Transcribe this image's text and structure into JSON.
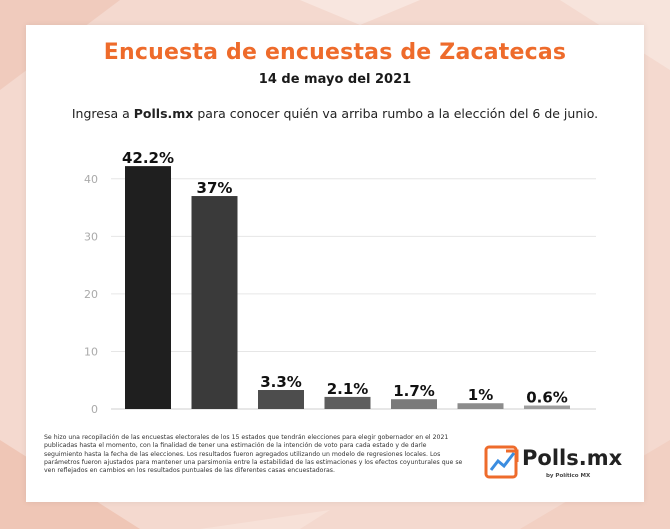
{
  "header": {
    "title": "Encuesta de encuestas de Zacatecas",
    "date": "14 de mayo del 2021",
    "intro_prefix": "Ingresa a ",
    "intro_brand": "Polls.mx",
    "intro_suffix": " para conocer quién va arriba rumbo a la elección del 6 de junio."
  },
  "chart_data": {
    "type": "bar",
    "title": "",
    "xlabel": "",
    "ylabel": "",
    "ylim": [
      0,
      45
    ],
    "yticks": [
      0,
      10,
      20,
      30,
      40
    ],
    "grid": true,
    "values": [
      42.2,
      37,
      3.3,
      2.1,
      1.7,
      1,
      0.6
    ],
    "labels": [
      "42.2%",
      "37%",
      "3.3%",
      "2.1%",
      "1.7%",
      "1%",
      "0.6%"
    ],
    "colors": [
      "#1f1f1f",
      "#3a3a3a",
      "#4d4d4d",
      "#5e5e5e",
      "#7a7a7a",
      "#8c8c8c",
      "#9e9e9e"
    ]
  },
  "footnote": "Se hizo una recopilación de las encuestas electorales de los 15 estados que tendrán elecciones para elegir gobernador en el 2021 publicadas hasta el momento, con la finalidad de tener una estimación de la intención de voto para cada estado y de darle seguimiento hasta la fecha de las elecciones. Los resultados fueron agregados utilizando un modelo de regresiones locales. Los parámetros fueron ajustados para mantener una parsimonia entre la estabilidad de las estimaciones y los efectos coyunturales que se ven reflejados en cambios en los resultados puntuales de las diferentes casas encuestadoras.",
  "logo": {
    "name": "Polls.mx",
    "byline": "by Político MX",
    "orange": "#ee6b2b"
  }
}
